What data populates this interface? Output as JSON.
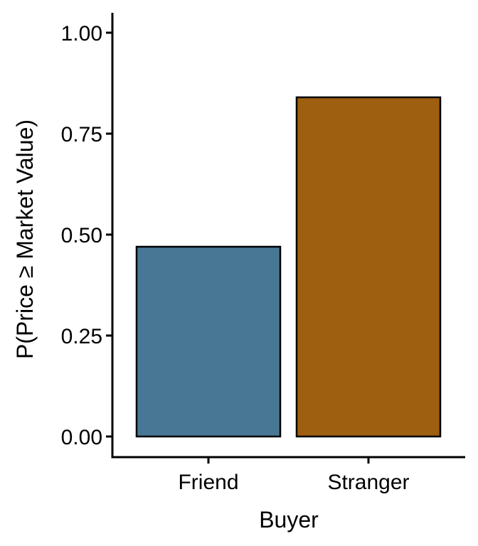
{
  "chart_data": {
    "type": "bar",
    "categories": [
      "Friend",
      "Stranger"
    ],
    "values": [
      0.47,
      0.84
    ],
    "colors": [
      "#477794",
      "#9E5F10"
    ],
    "bar_outline_color": "#000000",
    "xlabel": "Buyer",
    "ylabel": "P(Price ≥ Market Value)",
    "ylim": [
      0,
      1.05
    ],
    "yticks": [
      0.0,
      0.25,
      0.5,
      0.75,
      1.0
    ],
    "ytick_labels": [
      "0.00",
      "0.25",
      "0.50",
      "0.75",
      "1.00"
    ],
    "grid": false,
    "legend": "none"
  }
}
